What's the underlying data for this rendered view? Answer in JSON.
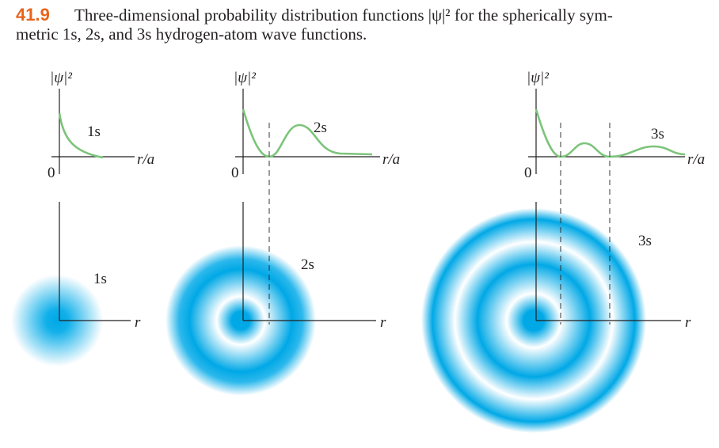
{
  "caption": {
    "number": "41.9",
    "lines": [
      "Three-dimensional probability distribution functions |ψ|² for the spherically sym-",
      "metric 1s, 2s, and 3s hydrogen-atom wave functions."
    ]
  },
  "panels": [
    {
      "ylabel": "|ψ|²",
      "origin": "0",
      "xlabel": "r/a",
      "curve_label": "1s",
      "cloud_label": "1s",
      "cloud_axis": "r"
    },
    {
      "ylabel": "|ψ|²",
      "origin": "0",
      "xlabel": "r/a",
      "curve_label": "2s",
      "cloud_label": "2s",
      "cloud_axis": "r"
    },
    {
      "ylabel": "|ψ|²",
      "origin": "0",
      "xlabel": "r/a",
      "curve_label": "3s",
      "cloud_label": "3s",
      "cloud_axis": "r"
    }
  ]
}
